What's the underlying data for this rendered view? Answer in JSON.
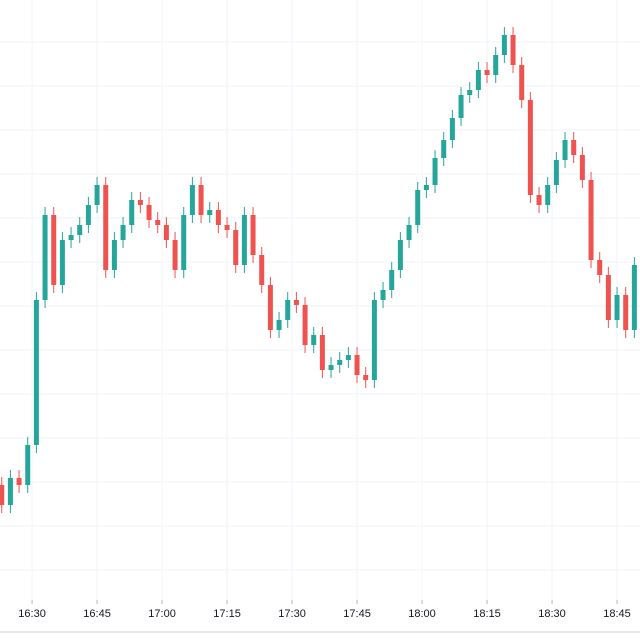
{
  "chart_data": {
    "type": "candlestick",
    "up_color": "#26a69a",
    "down_color": "#ef5350",
    "x": [
      983,
      985,
      987,
      989,
      991,
      993,
      995,
      997,
      999,
      1001,
      1003,
      1005,
      1007,
      1009,
      1011,
      1013,
      1015,
      1017,
      1019,
      1021,
      1023,
      1025,
      1027,
      1029,
      1031,
      1033,
      1035,
      1037,
      1039,
      1041,
      1043,
      1045,
      1047,
      1049,
      1051,
      1053,
      1055,
      1057,
      1059,
      1061,
      1063,
      1065,
      1067,
      1069,
      1071,
      1073,
      1075,
      1077,
      1079,
      1081,
      1083,
      1085,
      1087,
      1089,
      1091,
      1093,
      1095,
      1097,
      1099,
      1101,
      1103,
      1105,
      1107,
      1109,
      1111,
      1113,
      1115,
      1117,
      1119,
      1121,
      1123,
      1125,
      1127,
      1129
    ],
    "open": [
      155,
      135,
      162,
      155,
      195,
      340,
      425,
      355,
      400,
      405,
      415,
      435,
      455,
      370,
      400,
      415,
      440,
      435,
      420,
      415,
      400,
      370,
      425,
      455,
      425,
      430,
      415,
      410,
      375,
      425,
      385,
      355,
      310,
      320,
      340,
      335,
      295,
      305,
      270,
      275,
      280,
      285,
      265,
      260,
      340,
      350,
      370,
      400,
      415,
      450,
      455,
      482,
      500,
      522,
      545,
      550,
      570,
      565,
      585,
      605,
      575,
      540,
      445,
      435,
      455,
      480,
      500,
      485,
      460,
      380,
      365,
      320,
      345,
      310
    ],
    "high": [
      163,
      170,
      170,
      203,
      348,
      433,
      433,
      408,
      413,
      423,
      443,
      463,
      463,
      408,
      423,
      448,
      448,
      443,
      428,
      423,
      408,
      433,
      463,
      463,
      438,
      438,
      423,
      418,
      433,
      433,
      393,
      363,
      328,
      348,
      348,
      343,
      313,
      313,
      283,
      288,
      293,
      293,
      273,
      348,
      358,
      378,
      408,
      423,
      458,
      463,
      490,
      508,
      530,
      553,
      558,
      578,
      578,
      593,
      613,
      613,
      583,
      548,
      453,
      463,
      488,
      508,
      508,
      493,
      468,
      388,
      373,
      353,
      353,
      383
    ],
    "low": [
      127,
      127,
      147,
      147,
      187,
      332,
      347,
      347,
      392,
      397,
      407,
      427,
      362,
      362,
      392,
      407,
      427,
      412,
      407,
      392,
      362,
      362,
      417,
      417,
      417,
      407,
      402,
      367,
      367,
      377,
      347,
      302,
      302,
      312,
      327,
      287,
      287,
      262,
      262,
      267,
      272,
      257,
      252,
      252,
      332,
      342,
      362,
      392,
      407,
      442,
      447,
      474,
      492,
      514,
      537,
      542,
      557,
      557,
      577,
      567,
      532,
      437,
      427,
      427,
      447,
      472,
      477,
      452,
      372,
      357,
      312,
      312,
      302,
      302
    ],
    "close": [
      135,
      162,
      155,
      195,
      340,
      425,
      355,
      400,
      405,
      415,
      435,
      455,
      370,
      400,
      415,
      440,
      435,
      420,
      415,
      400,
      370,
      425,
      455,
      425,
      430,
      415,
      410,
      375,
      425,
      385,
      355,
      310,
      320,
      340,
      335,
      295,
      305,
      270,
      275,
      280,
      285,
      265,
      260,
      340,
      350,
      370,
      400,
      415,
      450,
      455,
      482,
      500,
      522,
      545,
      550,
      570,
      565,
      585,
      605,
      575,
      540,
      445,
      435,
      455,
      480,
      500,
      485,
      460,
      380,
      365,
      320,
      345,
      310,
      375
    ],
    "xlim": [
      982.6,
      1130.3
    ],
    "xticks": [
      {
        "value": 990,
        "label": "16:30"
      },
      {
        "value": 1005,
        "label": "16:45"
      },
      {
        "value": 1020,
        "label": "17:00"
      },
      {
        "value": 1035,
        "label": "17:15"
      },
      {
        "value": 1050,
        "label": "17:30"
      },
      {
        "value": 1065,
        "label": "17:45"
      },
      {
        "value": 1080,
        "label": "18:00"
      },
      {
        "value": 1095,
        "label": "18:15"
      },
      {
        "value": 1110,
        "label": "18:30"
      },
      {
        "value": 1125,
        "label": "18:45"
      }
    ],
    "ylim": [
      0,
      640
    ],
    "yticks": [
      70,
      114,
      158,
      202,
      246,
      290,
      334,
      378,
      422,
      466,
      510,
      554,
      598
    ],
    "grid": true
  }
}
